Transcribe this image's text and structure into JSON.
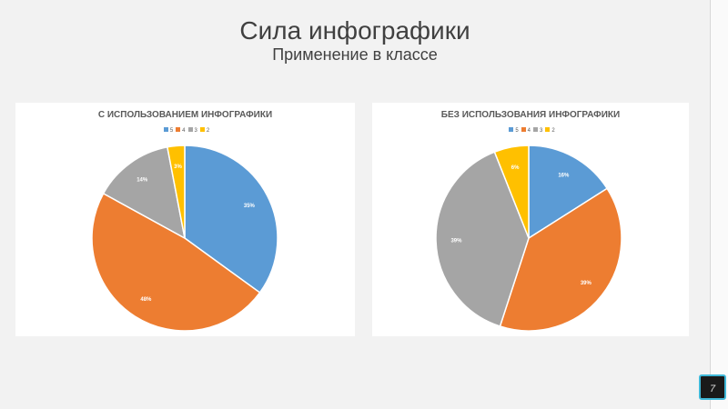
{
  "slide": {
    "title": "Сила инфографики",
    "subtitle": "Применение в классе",
    "page_number": "7"
  },
  "colors": {
    "5": "#5b9bd5",
    "4": "#ed7d31",
    "3": "#a5a5a5",
    "2": "#ffc000"
  },
  "chart_data": [
    {
      "type": "pie",
      "title": "С ИСПОЛЬЗОВАНИЕМ ИНФОГРАФИКИ",
      "categories": [
        "5",
        "4",
        "3",
        "2"
      ],
      "values": [
        35,
        48,
        14,
        3
      ],
      "labels": [
        "35%",
        "48%",
        "14%",
        "3%"
      ],
      "legend": "top"
    },
    {
      "type": "pie",
      "title": "БЕЗ ИСПОЛЬЗОВАНИЯ ИНФОГРАФИКИ",
      "categories": [
        "5",
        "4",
        "3",
        "2"
      ],
      "values": [
        16,
        39,
        39,
        6
      ],
      "labels": [
        "16%",
        "39%",
        "39%",
        "6%"
      ],
      "legend": "top"
    }
  ]
}
